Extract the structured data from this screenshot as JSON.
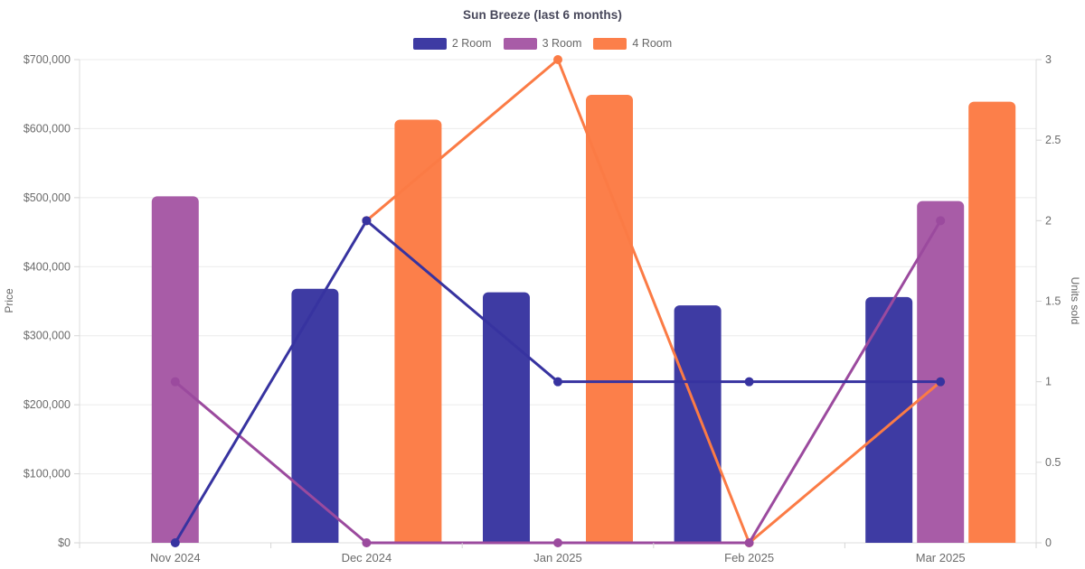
{
  "chart_data": {
    "type": "combo-bar-line-dual-axis",
    "title": "Sun Breeze (last 6 months)",
    "categories": [
      "Nov 2024",
      "Dec 2024",
      "Jan 2025",
      "Feb 2025",
      "Mar 2025"
    ],
    "legend_position": "top",
    "grid": "horizontal-only",
    "y_left": {
      "label": "Price",
      "min": 0,
      "max": 700000,
      "tick_step": 100000,
      "tick_format": "$#,##0"
    },
    "y_right": {
      "label": "Units sold",
      "min": 0,
      "max": 3,
      "tick_step": 0.5
    },
    "series": [
      {
        "name": "2 Room",
        "bar_color": "#3e3ba3",
        "line_color": "#3733a0",
        "bars_price_usd": [
          null,
          368000,
          363000,
          344000,
          356000
        ],
        "line_units_sold": [
          0,
          2,
          1,
          1,
          1
        ]
      },
      {
        "name": "3 Room",
        "bar_color": "#a85ca7",
        "line_color": "#9b4a9e",
        "bars_price_usd": [
          502000,
          null,
          null,
          null,
          495000
        ],
        "line_units_sold": [
          1,
          0,
          0,
          0,
          2
        ]
      },
      {
        "name": "4 Room",
        "bar_color": "#fc7f4a",
        "line_color": "#fb7b45",
        "bars_price_usd": [
          null,
          613000,
          649000,
          null,
          639000
        ],
        "line_units_sold": [
          null,
          2,
          3,
          0,
          1
        ]
      }
    ],
    "colors": {
      "background": "#ffffff",
      "gridline": "#ebebeb",
      "axis_border": "#dcdcdc",
      "tick_mark": "#d6d6d6",
      "tick_text": "#6b6b6b",
      "title_text": "#47475a",
      "legend_text": "#666666"
    }
  }
}
